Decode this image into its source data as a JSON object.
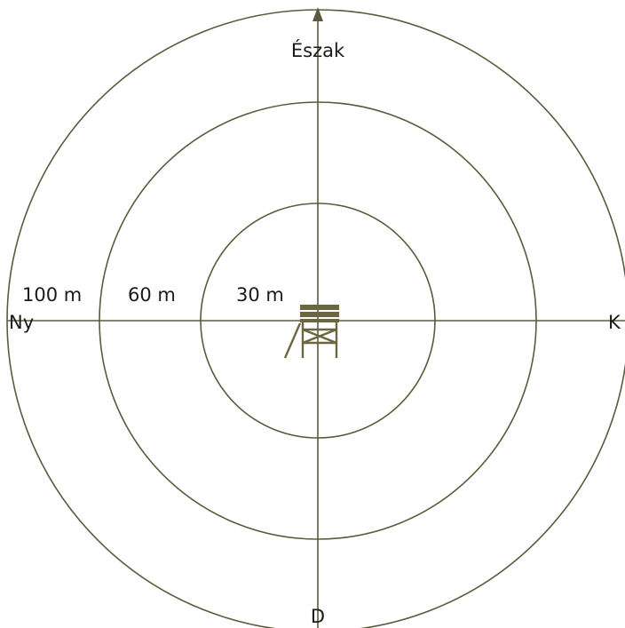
{
  "diagram": {
    "line_color": "#5b5a3c",
    "icon_color": "#6b6540",
    "text_color": "#1a1a1a",
    "directions": {
      "north": "Észak",
      "west": "Ny",
      "east": "K",
      "south": "D"
    },
    "distance_labels": [
      "100 m",
      "60 m",
      "30 m"
    ],
    "center_icon": "hunting-stand-icon"
  }
}
